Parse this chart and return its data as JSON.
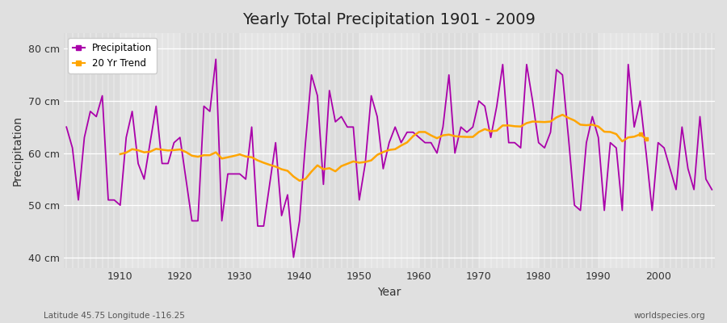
{
  "title": "Yearly Total Precipitation 1901 - 2009",
  "xlabel": "Year",
  "ylabel": "Precipitation",
  "subtitle": "Latitude 45.75 Longitude -116.25",
  "watermark": "worldspecies.org",
  "ylim": [
    38,
    83
  ],
  "yticks": [
    40,
    50,
    60,
    70,
    80
  ],
  "ytick_labels": [
    "40 cm",
    "50 cm",
    "60 cm",
    "70 cm",
    "80 cm"
  ],
  "xlim": [
    1900.5,
    2009.5
  ],
  "precipitation_color": "#AA00AA",
  "trend_color": "#FFA500",
  "bg_color": "#E0E0E0",
  "plot_bg_light": "#E8E8E8",
  "plot_bg_dark": "#D8D8D8",
  "grid_color": "#FFFFFF",
  "years": [
    1901,
    1902,
    1903,
    1904,
    1905,
    1906,
    1907,
    1908,
    1909,
    1910,
    1911,
    1912,
    1913,
    1914,
    1915,
    1916,
    1917,
    1918,
    1919,
    1920,
    1921,
    1922,
    1923,
    1924,
    1925,
    1926,
    1927,
    1928,
    1929,
    1930,
    1931,
    1932,
    1933,
    1934,
    1935,
    1936,
    1937,
    1938,
    1939,
    1940,
    1941,
    1942,
    1943,
    1944,
    1945,
    1946,
    1947,
    1948,
    1949,
    1950,
    1951,
    1952,
    1953,
    1954,
    1955,
    1956,
    1957,
    1958,
    1959,
    1960,
    1961,
    1962,
    1963,
    1964,
    1965,
    1966,
    1967,
    1968,
    1969,
    1970,
    1971,
    1972,
    1973,
    1974,
    1975,
    1976,
    1977,
    1978,
    1979,
    1980,
    1981,
    1982,
    1983,
    1984,
    1985,
    1986,
    1987,
    1988,
    1989,
    1990,
    1991,
    1992,
    1993,
    1994,
    1995,
    1996,
    1997,
    1998,
    1999,
    2000,
    2001,
    2002,
    2003,
    2004,
    2005,
    2006,
    2007,
    2008,
    2009
  ],
  "precipitation": [
    65,
    61,
    51,
    63,
    68,
    67,
    71,
    51,
    51,
    50,
    63,
    68,
    58,
    55,
    62,
    69,
    58,
    58,
    62,
    63,
    55,
    47,
    47,
    69,
    68,
    78,
    47,
    56,
    56,
    56,
    55,
    65,
    46,
    46,
    54,
    62,
    48,
    52,
    40,
    47,
    62,
    75,
    71,
    54,
    72,
    66,
    67,
    65,
    65,
    51,
    58,
    71,
    67,
    57,
    62,
    65,
    62,
    64,
    64,
    63,
    62,
    62,
    60,
    65,
    75,
    60,
    65,
    64,
    65,
    70,
    69,
    63,
    69,
    77,
    62,
    62,
    61,
    77,
    70,
    62,
    61,
    64,
    76,
    75,
    63,
    50,
    49,
    62,
    67,
    63,
    49,
    62,
    61,
    49,
    77,
    65,
    70,
    60,
    49,
    62,
    61,
    57,
    53,
    65,
    57,
    53,
    67,
    55,
    53
  ],
  "trend_start_year": 1910,
  "trend_end_year": 1997,
  "trend_window": 20
}
